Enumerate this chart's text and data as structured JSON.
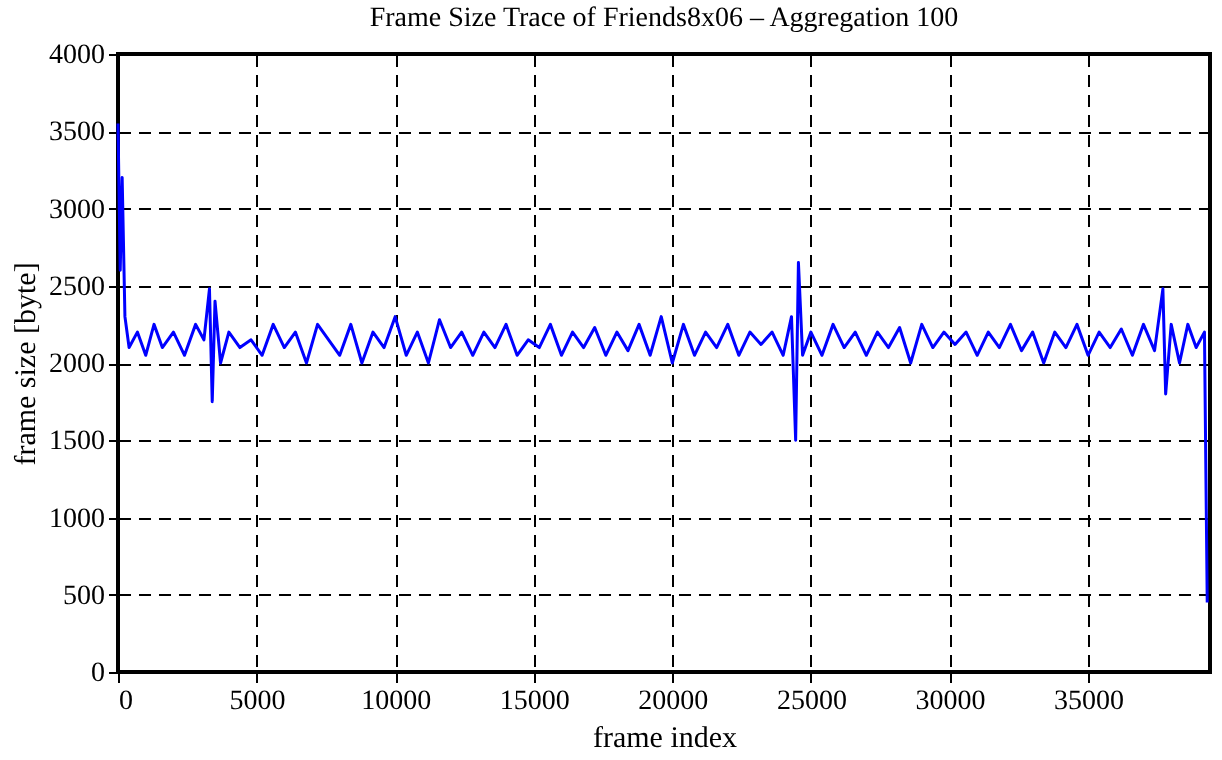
{
  "chart_data": {
    "type": "line",
    "title": "Frame Size Trace of Friends8x06 – Aggregation 100",
    "xlabel": "frame index",
    "ylabel": "frame size [byte]",
    "xlim": [
      0,
      39400
    ],
    "xticks": [
      0,
      5000,
      10000,
      15000,
      20000,
      25000,
      30000,
      35000
    ],
    "ylim": [
      0,
      4000
    ],
    "yticks": [
      0,
      500,
      1000,
      1500,
      2000,
      2500,
      3000,
      3500,
      4000
    ],
    "grid": true,
    "marker": "none",
    "line_style": "solid",
    "series": [
      {
        "color": "#0000ff",
        "x": [
          0,
          80,
          150,
          250,
          400,
          700,
          1000,
          1300,
          1600,
          2000,
          2400,
          2800,
          3100,
          3300,
          3400,
          3500,
          3700,
          4000,
          4400,
          4800,
          5200,
          5600,
          6000,
          6400,
          6800,
          7200,
          7600,
          8000,
          8400,
          8800,
          9200,
          9600,
          10000,
          10400,
          10800,
          11200,
          11600,
          12000,
          12400,
          12800,
          13200,
          13600,
          14000,
          14400,
          14800,
          15200,
          15600,
          16000,
          16400,
          16800,
          17200,
          17600,
          18000,
          18400,
          18800,
          19200,
          19600,
          20000,
          20400,
          20800,
          21200,
          21600,
          22000,
          22400,
          22800,
          23200,
          23600,
          24000,
          24300,
          24450,
          24550,
          24700,
          25000,
          25400,
          25800,
          26200,
          26600,
          27000,
          27400,
          27800,
          28200,
          28600,
          29000,
          29400,
          29800,
          30200,
          30600,
          31000,
          31400,
          31800,
          32200,
          32600,
          33000,
          33400,
          33800,
          34200,
          34600,
          35000,
          35400,
          35800,
          36200,
          36600,
          37000,
          37400,
          37700,
          37800,
          38000,
          38300,
          38600,
          38900,
          39200,
          39300
        ],
        "values": [
          3550,
          2600,
          3200,
          2300,
          2100,
          2200,
          2050,
          2250,
          2100,
          2200,
          2050,
          2250,
          2150,
          2480,
          1750,
          2400,
          2000,
          2200,
          2100,
          2150,
          2050,
          2250,
          2100,
          2200,
          2000,
          2250,
          2150,
          2050,
          2250,
          2000,
          2200,
          2100,
          2300,
          2050,
          2200,
          2000,
          2280,
          2100,
          2200,
          2050,
          2200,
          2100,
          2250,
          2050,
          2150,
          2100,
          2250,
          2050,
          2200,
          2100,
          2230,
          2050,
          2200,
          2080,
          2250,
          2050,
          2300,
          2000,
          2250,
          2050,
          2200,
          2100,
          2250,
          2050,
          2200,
          2120,
          2200,
          2050,
          2300,
          1500,
          2650,
          2050,
          2200,
          2050,
          2250,
          2100,
          2200,
          2050,
          2200,
          2100,
          2230,
          2000,
          2250,
          2100,
          2200,
          2120,
          2200,
          2050,
          2200,
          2100,
          2250,
          2080,
          2200,
          2000,
          2200,
          2100,
          2250,
          2050,
          2200,
          2100,
          2220,
          2050,
          2250,
          2080,
          2480,
          1800,
          2250,
          2000,
          2250,
          2100,
          2200,
          450
        ]
      }
    ]
  }
}
